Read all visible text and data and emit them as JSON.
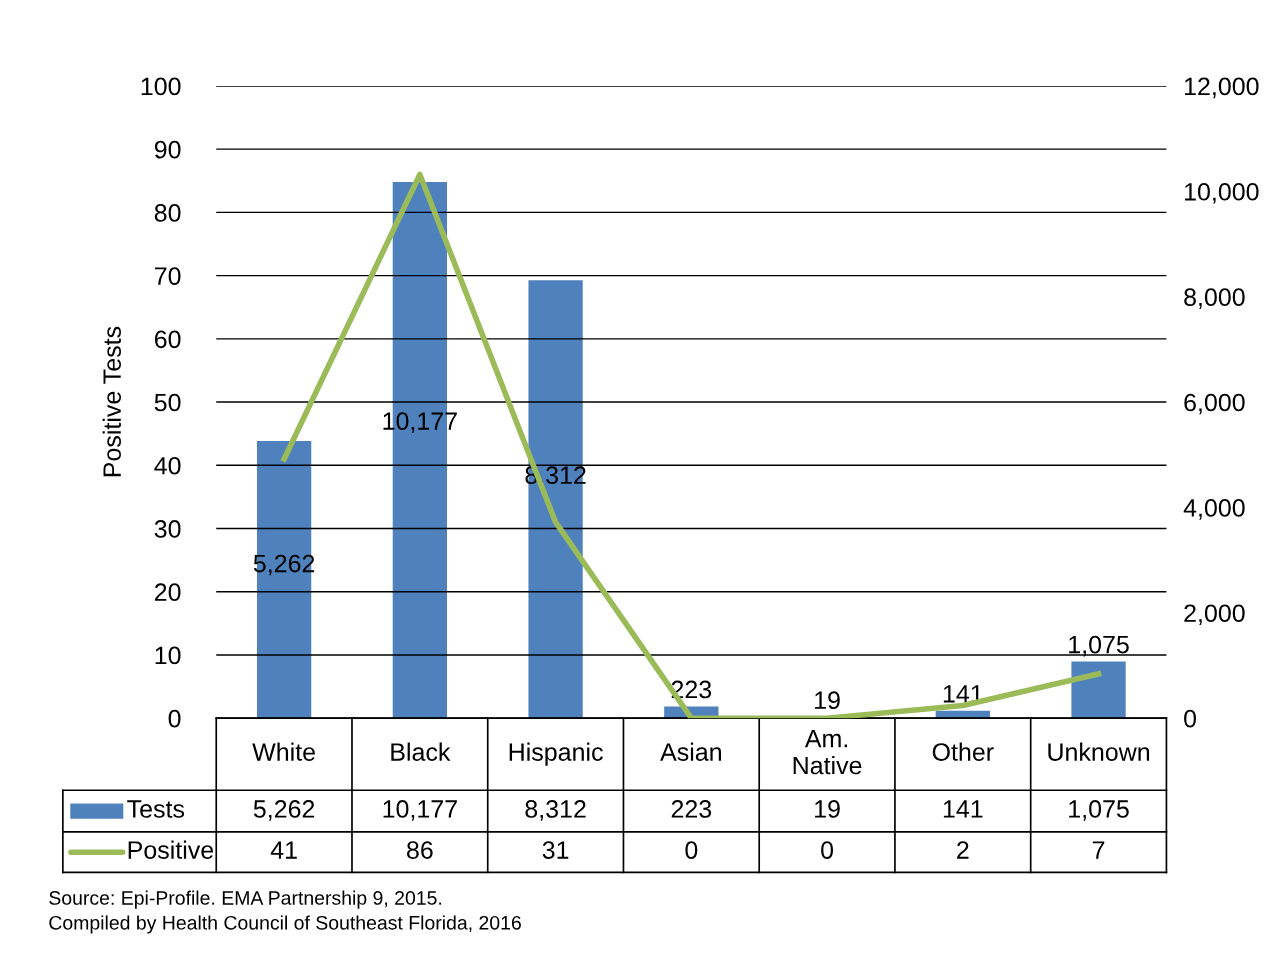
{
  "chart_data": {
    "type": "bar",
    "categories": [
      "White",
      "Black",
      "Hispanic",
      "Asian",
      "Am.\nNative",
      "Other",
      "Unknown"
    ],
    "series": [
      {
        "name": "Tests",
        "axis": "y2",
        "color": "#4f81bd",
        "values": [
          5262,
          10177,
          8312,
          223,
          19,
          141,
          1075
        ],
        "value_labels": [
          "5,262",
          "10,177",
          "8,312",
          "223",
          "19",
          "141",
          "1,075"
        ]
      },
      {
        "name": "Positive",
        "type": "line",
        "axis": "y",
        "color": "#9bbb59",
        "values": [
          41,
          86,
          31,
          0,
          0,
          2,
          7
        ],
        "value_labels": [
          "41",
          "86",
          "31",
          "0",
          "0",
          "2",
          "7"
        ]
      }
    ],
    "ylabel": "Positive Tests",
    "ylim": [
      0,
      100
    ],
    "yticks": [
      0,
      10,
      20,
      30,
      40,
      50,
      60,
      70,
      80,
      90,
      100
    ],
    "y2lim": [
      0,
      12000
    ],
    "y2ticks": [
      {
        "value": 0,
        "label": "0"
      },
      {
        "value": 2000,
        "label": "2,000"
      },
      {
        "value": 4000,
        "label": "4,000"
      },
      {
        "value": 6000,
        "label": "6,000"
      },
      {
        "value": 8000,
        "label": "8,000"
      },
      {
        "value": 10000,
        "label": "10,000"
      },
      {
        "value": 12000,
        "label": "12,000"
      }
    ],
    "grid": "y",
    "legend": "bottom",
    "marker": "none",
    "annotations": [
      "Source: Epi-Profile. EMA Partnership 9, 2015.",
      "Compiled by Health Council of Southeast Florida, 2016"
    ]
  }
}
